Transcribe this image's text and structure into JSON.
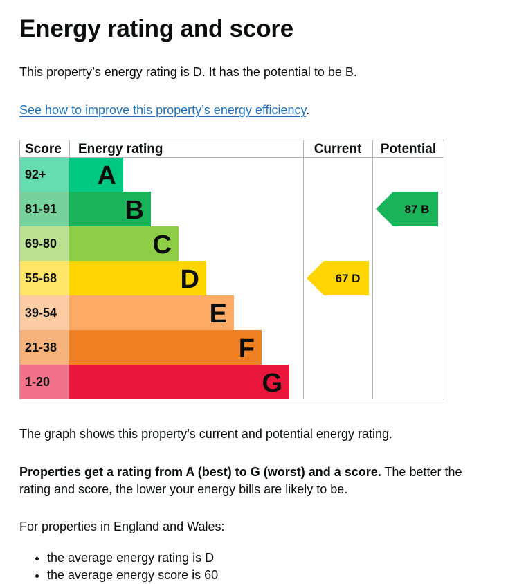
{
  "page": {
    "title": "Energy rating and score",
    "intro": "This property’s energy rating is D. It has the potential to be B.",
    "improve_link": "See how to improve this property’s energy efficiency",
    "improve_link_suffix": ".",
    "graph_note": "The graph shows this property’s current and potential energy rating.",
    "rating_bold": "Properties get a rating from A (best) to G (worst) and a score.",
    "rating_rest": " The better the rating and score, the lower your energy bills are likely to be.",
    "region_intro": "For properties in England and Wales:",
    "averages": [
      "the average energy rating is D",
      "the average energy score is 60"
    ]
  },
  "chart_data": {
    "type": "table",
    "headers": {
      "score": "Score",
      "rating": "Energy rating",
      "current": "Current",
      "potential": "Potential"
    },
    "bands": [
      {
        "letter": "A",
        "range": "92+",
        "color": "#00c781",
        "score_bg": "#66dcb1"
      },
      {
        "letter": "B",
        "range": "81-91",
        "color": "#19b459",
        "score_bg": "#75d29b"
      },
      {
        "letter": "C",
        "range": "69-80",
        "color": "#8dce46",
        "score_bg": "#bbe290"
      },
      {
        "letter": "D",
        "range": "55-68",
        "color": "#ffd500",
        "score_bg": "#ffe666"
      },
      {
        "letter": "E",
        "range": "39-54",
        "color": "#fcaa65",
        "score_bg": "#fdcca3"
      },
      {
        "letter": "F",
        "range": "21-38",
        "color": "#ef8023",
        "score_bg": "#f5b37b"
      },
      {
        "letter": "G",
        "range": "1-20",
        "color": "#e9153b",
        "score_bg": "#f27389"
      }
    ],
    "current": {
      "score": 67,
      "band": "D",
      "label": "67  D",
      "color": "#ffd500"
    },
    "potential": {
      "score": 87,
      "band": "B",
      "label": "87  B",
      "color": "#19b459"
    }
  }
}
